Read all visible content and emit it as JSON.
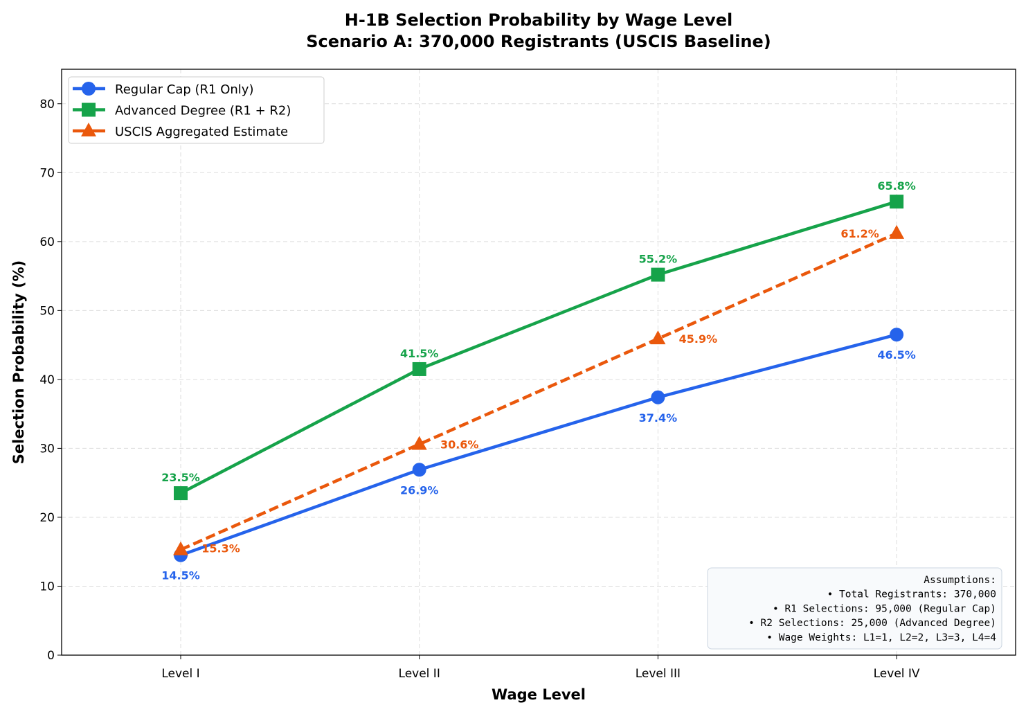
{
  "chart_data": {
    "type": "line",
    "title": "H-1B Selection Probability by Wage Level",
    "subtitle": "Scenario A: 370,000 Registrants (USCIS Baseline)",
    "xlabel": "Wage Level",
    "ylabel": "Selection Probability (%)",
    "categories": [
      "Level I",
      "Level II",
      "Level III",
      "Level IV"
    ],
    "ylim": [
      0,
      85
    ],
    "yticks": [
      0,
      10,
      20,
      30,
      40,
      50,
      60,
      70,
      80
    ],
    "grid": true,
    "legend_placement": "top-left",
    "series": [
      {
        "name": "Regular Cap (R1 Only)",
        "values": [
          14.5,
          26.9,
          37.4,
          46.5
        ],
        "labels": [
          "14.5%",
          "26.9%",
          "37.4%",
          "46.5%"
        ],
        "color": "#2563eb",
        "marker": "circle",
        "linestyle": "solid"
      },
      {
        "name": "Advanced Degree (R1 + R2)",
        "values": [
          23.5,
          41.5,
          55.2,
          65.8
        ],
        "labels": [
          "23.5%",
          "41.5%",
          "55.2%",
          "65.8%"
        ],
        "color": "#16a34a",
        "marker": "square",
        "linestyle": "solid"
      },
      {
        "name": "USCIS Aggregated Estimate",
        "values": [
          15.3,
          30.6,
          45.9,
          61.2
        ],
        "labels": [
          "15.3%",
          "30.6%",
          "45.9%",
          "61.2%"
        ],
        "color": "#ea580c",
        "marker": "triangle",
        "linestyle": "dashed"
      }
    ],
    "annotation": {
      "lines": [
        "Assumptions:",
        "• Total Registrants: 370,000",
        "• R1 Selections: 95,000 (Regular Cap)",
        "• R2 Selections: 25,000 (Advanced Degree)",
        "• Wage Weights: L1=1, L2=2, L3=3, L4=4"
      ],
      "placement": "bottom-right"
    }
  }
}
